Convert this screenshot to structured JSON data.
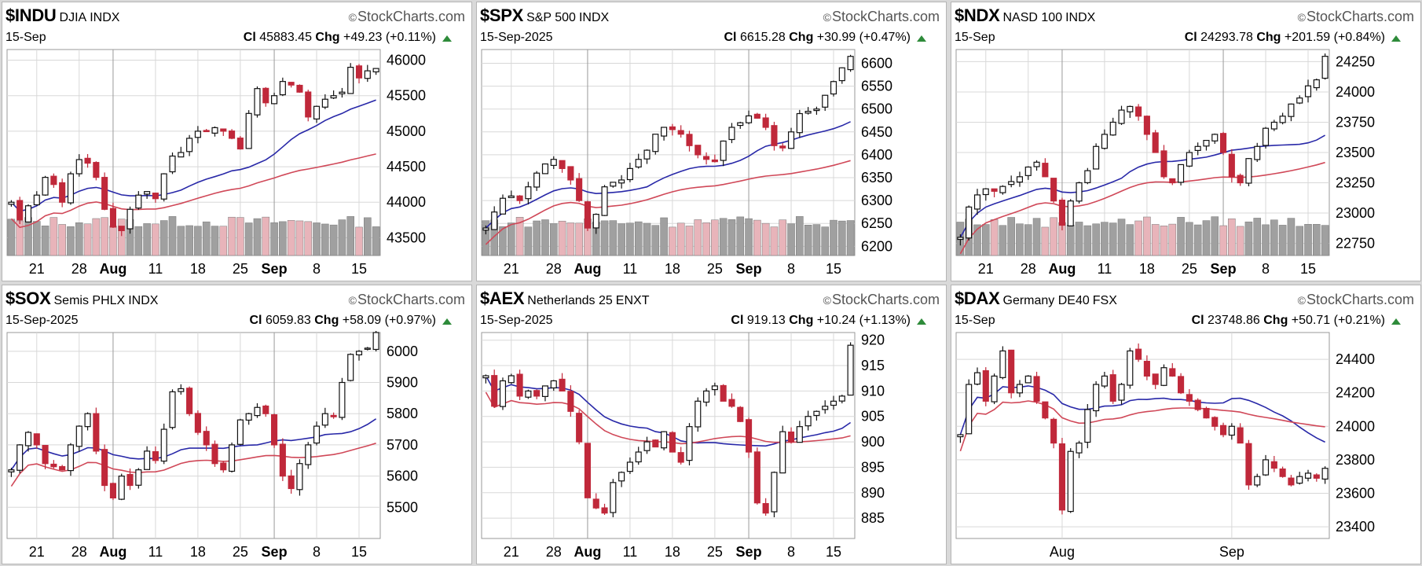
{
  "source_label": "StockCharts.com",
  "colors": {
    "up": "#111111",
    "down": "#c0283a",
    "ma_short": "#2828a8",
    "ma_long": "#d04858",
    "vol_up": "#a0a0a0",
    "vol_down": "#e8b4ba",
    "grid": "#d8d8d8"
  },
  "chart_data": [
    {
      "type": "candlestick",
      "symbol": "$INDU",
      "name": "DJIA",
      "exchange": "INDX",
      "date": "15-Sep",
      "close_label": "Cl",
      "close": "45883.45",
      "change_label": "Chg",
      "change": "+49.23 (+0.11%)",
      "ylim": [
        43250,
        46150
      ],
      "yticks": [
        43500,
        44000,
        44500,
        45000,
        45500,
        46000
      ],
      "xtick_labels": [
        "21",
        "28",
        "Aug",
        "11",
        "18",
        "25",
        "Sep",
        "8",
        "15"
      ],
      "xtick_index": [
        3,
        8,
        12,
        17,
        22,
        27,
        31,
        36,
        41
      ],
      "xtick_bold": [
        "Aug",
        "Sep"
      ],
      "volume_bars": true,
      "close_series": [
        44000,
        43750,
        43950,
        44100,
        44350,
        44250,
        44000,
        44400,
        44600,
        44550,
        44350,
        43900,
        43650,
        43600,
        43900,
        44100,
        44150,
        44050,
        44400,
        44650,
        44700,
        44900,
        45000,
        45000,
        45050,
        45000,
        44900,
        44750,
        45250,
        45600,
        45400,
        45500,
        45700,
        45650,
        45550,
        45200,
        45350,
        45450,
        45500,
        45550,
        45900,
        45750,
        45850,
        45883
      ]
    },
    {
      "type": "candlestick",
      "symbol": "$SPX",
      "name": "S&P 500",
      "exchange": "INDX",
      "date": "15-Sep-2025",
      "close_label": "Cl",
      "close": "6615.28",
      "change_label": "Chg",
      "change": "+30.99 (+0.47%)",
      "ylim": [
        6180,
        6630
      ],
      "yticks": [
        6200,
        6250,
        6300,
        6350,
        6400,
        6450,
        6500,
        6550,
        6600
      ],
      "xtick_labels": [
        "21",
        "28",
        "Aug",
        "11",
        "18",
        "25",
        "Sep",
        "8",
        "15"
      ],
      "xtick_index": [
        3,
        8,
        12,
        17,
        22,
        27,
        31,
        36,
        41
      ],
      "xtick_bold": [
        "Aug",
        "Sep"
      ],
      "volume_bars": true,
      "close_series": [
        6240,
        6275,
        6305,
        6310,
        6300,
        6330,
        6360,
        6380,
        6390,
        6370,
        6345,
        6300,
        6240,
        6270,
        6330,
        6340,
        6345,
        6370,
        6390,
        6410,
        6445,
        6460,
        6455,
        6445,
        6420,
        6400,
        6390,
        6385,
        6430,
        6460,
        6470,
        6485,
        6480,
        6460,
        6420,
        6415,
        6450,
        6490,
        6495,
        6500,
        6530,
        6560,
        6590,
        6615
      ]
    },
    {
      "type": "candlestick",
      "symbol": "$NDX",
      "name": "NASD 100",
      "exchange": "INDX",
      "date": "15-Sep",
      "close_label": "Cl",
      "close": "24293.78",
      "change_label": "Chg",
      "change": "+201.59 (+0.84%)",
      "ylim": [
        22650,
        24350
      ],
      "yticks": [
        22750,
        23000,
        23250,
        23500,
        23750,
        24000,
        24250
      ],
      "xtick_labels": [
        "21",
        "28",
        "Aug",
        "11",
        "18",
        "25",
        "Sep",
        "8",
        "15"
      ],
      "xtick_index": [
        3,
        8,
        12,
        17,
        22,
        27,
        31,
        36,
        41
      ],
      "xtick_bold": [
        "Aug",
        "Sep"
      ],
      "volume_bars": true,
      "close_series": [
        22800,
        23050,
        23150,
        23200,
        23180,
        23220,
        23260,
        23300,
        23380,
        23420,
        23300,
        23100,
        22900,
        23100,
        23250,
        23350,
        23550,
        23650,
        23750,
        23850,
        23880,
        23800,
        23650,
        23500,
        23300,
        23250,
        23400,
        23500,
        23550,
        23600,
        23650,
        23500,
        23300,
        23250,
        23450,
        23550,
        23700,
        23750,
        23800,
        23900,
        23950,
        24050,
        24100,
        24294
      ]
    },
    {
      "type": "candlestick",
      "symbol": "$SOX",
      "name": "Semis PHLX",
      "exchange": "INDX",
      "date": "15-Sep-2025",
      "close_label": "Cl",
      "close": "6059.83",
      "change_label": "Chg",
      "change": "+58.09 (+0.97%)",
      "ylim": [
        5400,
        6060
      ],
      "yticks": [
        5500,
        5600,
        5700,
        5800,
        5900,
        6000
      ],
      "xtick_labels": [
        "21",
        "28",
        "Aug",
        "11",
        "18",
        "25",
        "Sep",
        "8",
        "15"
      ],
      "xtick_index": [
        3,
        8,
        12,
        17,
        22,
        27,
        31,
        36,
        41
      ],
      "xtick_bold": [
        "Aug",
        "Sep"
      ],
      "volume_bars": false,
      "close_series": [
        5620,
        5700,
        5740,
        5700,
        5640,
        5630,
        5620,
        5700,
        5760,
        5800,
        5680,
        5570,
        5530,
        5600,
        5570,
        5620,
        5680,
        5650,
        5750,
        5870,
        5880,
        5800,
        5740,
        5700,
        5640,
        5620,
        5700,
        5780,
        5800,
        5820,
        5800,
        5700,
        5600,
        5560,
        5640,
        5700,
        5760,
        5800,
        5790,
        5900,
        5990,
        6000,
        6010,
        6060
      ]
    },
    {
      "type": "candlestick",
      "symbol": "$AEX",
      "name": "Netherlands 25",
      "exchange": "ENXT",
      "date": "15-Sep-2025",
      "close_label": "Cl",
      "close": "919.13",
      "change_label": "Chg",
      "change": "+10.24 (+1.13%)",
      "ylim": [
        881,
        921.5
      ],
      "yticks": [
        885,
        890,
        895,
        900,
        905,
        910,
        915,
        920
      ],
      "xtick_labels": [
        "21",
        "28",
        "Aug",
        "11",
        "18",
        "25",
        "Sep",
        "8",
        "15"
      ],
      "xtick_index": [
        3,
        8,
        12,
        17,
        22,
        27,
        31,
        36,
        41
      ],
      "xtick_bold": [
        "Aug",
        "Sep"
      ],
      "volume_bars": false,
      "close_series": [
        913,
        907,
        912,
        913,
        909,
        910,
        909,
        911,
        912,
        910,
        906,
        900,
        889,
        887,
        886,
        892,
        894,
        896,
        898,
        900,
        899,
        902,
        898,
        896,
        903,
        908,
        910,
        911,
        908,
        907,
        904,
        898,
        888,
        886,
        894,
        902,
        900,
        903,
        905,
        906,
        907,
        908,
        909,
        919
      ]
    },
    {
      "type": "candlestick",
      "symbol": "$DAX",
      "name": "Germany DE40",
      "exchange": "FSX",
      "date": "15-Sep",
      "close_label": "Cl",
      "close": "23748.86",
      "change_label": "Chg",
      "change": "+50.71 (+0.21%)",
      "ylim": [
        23330,
        24560
      ],
      "yticks": [
        23400,
        23600,
        23800,
        24000,
        24200,
        24400
      ],
      "xtick_labels": [
        "Aug",
        "Sep"
      ],
      "xtick_index": [
        12,
        32
      ],
      "xtick_bold": [],
      "volume_bars": false,
      "close_series": [
        23950,
        24250,
        24320,
        24150,
        24300,
        24450,
        24200,
        24250,
        24300,
        24150,
        24050,
        23900,
        23500,
        23850,
        23900,
        24100,
        24250,
        24300,
        24150,
        24250,
        24450,
        24400,
        24300,
        24250,
        24350,
        24300,
        24200,
        24150,
        24100,
        24050,
        24000,
        23950,
        24000,
        23900,
        23650,
        23700,
        23800,
        23750,
        23700,
        23650,
        23700,
        23720,
        23690,
        23749
      ]
    }
  ]
}
